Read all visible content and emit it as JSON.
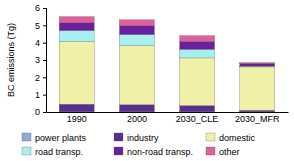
{
  "chart_data": {
    "type": "bar",
    "stacked": true,
    "y_label": "BC emissions (Tg)",
    "categories": [
      "1990",
      "2000",
      "2030_CLE",
      "2030_MFR"
    ],
    "ylim": [
      0,
      6
    ],
    "yticks": [
      0,
      1,
      2,
      3,
      4,
      5,
      6
    ],
    "legend": "bottom",
    "series": [
      {
        "name": "power plants",
        "color": "#8fa6e0",
        "values": [
          0.02,
          0.02,
          0.02,
          0.02
        ]
      },
      {
        "name": "industry",
        "color": "#5a2d91",
        "values": [
          0.43,
          0.4,
          0.35,
          0.08
        ]
      },
      {
        "name": "domestic",
        "color": "#f0f0a8",
        "values": [
          3.6,
          3.4,
          2.75,
          2.5
        ]
      },
      {
        "name": "road transp.",
        "color": "#a8f0f0",
        "values": [
          0.65,
          0.65,
          0.5,
          0.05
        ]
      },
      {
        "name": "non-road transp.",
        "color": "#6a1fa0",
        "values": [
          0.45,
          0.5,
          0.45,
          0.15
        ]
      },
      {
        "name": "other",
        "color": "#e0609a",
        "values": [
          0.35,
          0.35,
          0.33,
          0.05
        ]
      }
    ]
  }
}
